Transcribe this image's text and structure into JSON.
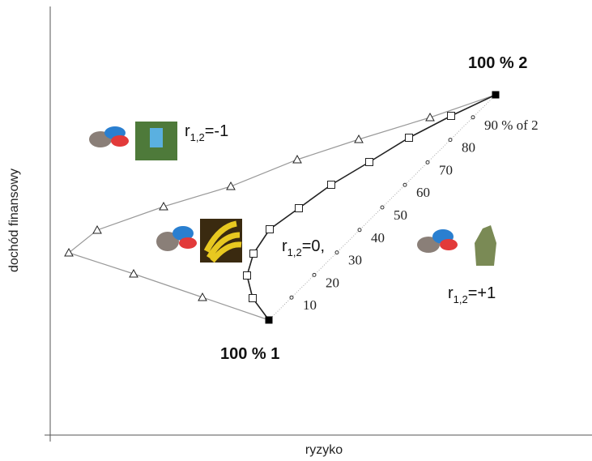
{
  "axes": {
    "x_label": "ryzyko",
    "y_label": "dochód finansowy"
  },
  "points": {
    "asset_1": "100 % 1",
    "asset_2": "100 % 2"
  },
  "weights": [
    "10",
    "20",
    "30",
    "40",
    "50",
    "60",
    "70",
    "80",
    "90 % of 2"
  ],
  "correlations": [
    {
      "prefix": "r",
      "subscript": "1,2",
      "suffix": "=-1"
    },
    {
      "prefix": "r",
      "subscript": "1,2",
      "suffix": "=0,"
    },
    {
      "prefix": "r",
      "subscript": "1,2",
      "suffix": "=+1"
    }
  ]
}
